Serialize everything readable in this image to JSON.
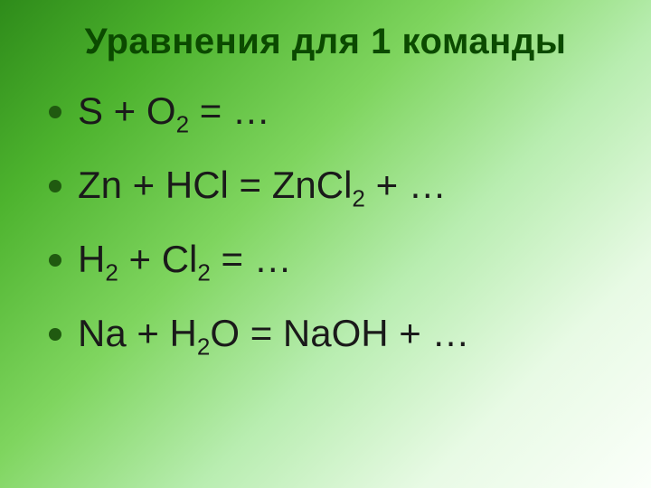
{
  "slide": {
    "title": "Уравнения для 1 команды",
    "title_color": "#0b4a00",
    "title_fontsize": 40,
    "bullet_color": "#205a10",
    "equation_color": "#1a1a1a",
    "equation_fontsize": 42,
    "background_gradient": [
      "#2e8b1a",
      "#4db32e",
      "#7fd55f",
      "#b8edb0",
      "#e8fae5",
      "#fbfffa"
    ],
    "equations": [
      {
        "parts": [
          {
            "t": "S + O"
          },
          {
            "t": "2",
            "sub": true
          },
          {
            "t": " = …"
          }
        ]
      },
      {
        "parts": [
          {
            "t": "Zn + HCl = ZnCl"
          },
          {
            "t": "2",
            "sub": true
          },
          {
            "t": " + …"
          }
        ]
      },
      {
        "parts": [
          {
            "t": "H"
          },
          {
            "t": "2",
            "sub": true
          },
          {
            "t": " + Cl"
          },
          {
            "t": "2",
            "sub": true
          },
          {
            "t": " = …"
          }
        ]
      },
      {
        "parts": [
          {
            "t": "Na + H"
          },
          {
            "t": "2",
            "sub": true
          },
          {
            "t": "O = NaOH + …"
          }
        ]
      }
    ]
  }
}
